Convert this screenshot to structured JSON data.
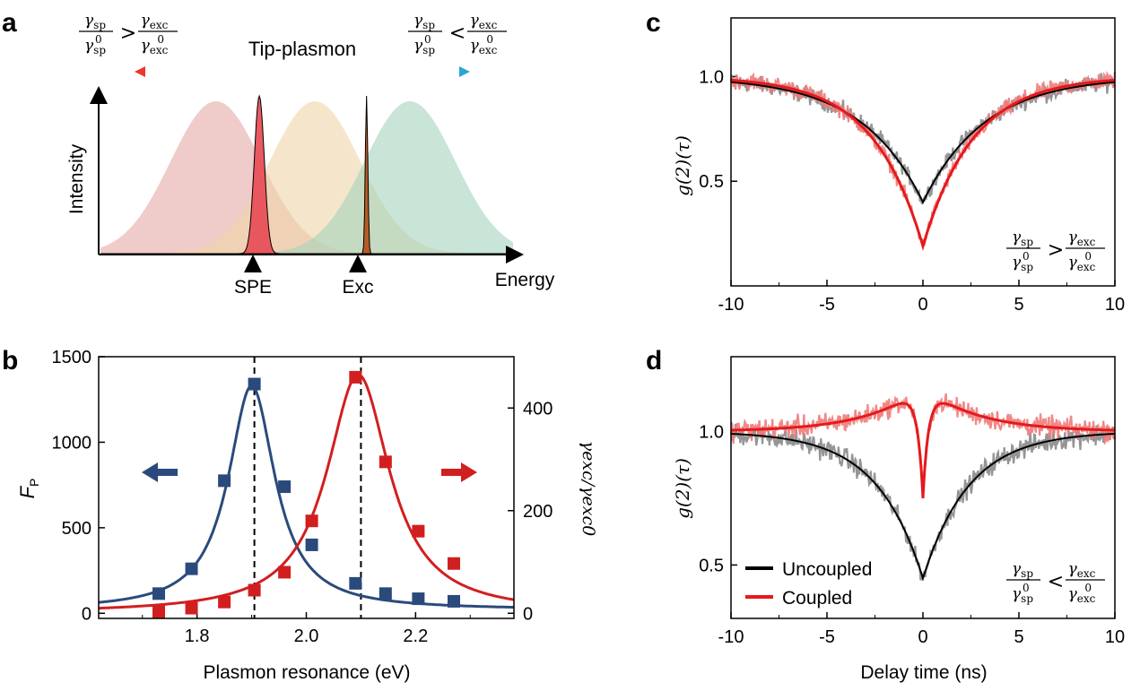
{
  "figure": {
    "panel_labels": [
      "a",
      "b",
      "c",
      "d"
    ]
  },
  "chart_data": [
    {
      "panel": "a",
      "type": "area",
      "title": "Tip-plasmon",
      "xlabel": "Energy",
      "ylabel": "Intensity",
      "ratio_left": {
        "num_sym": "γ",
        "num_sub": "sp",
        "den_sym": "γ",
        "den_sub": "sp",
        "den_sup": "0",
        "op": ">",
        "num2_sub": "exc",
        "den2_sub": "exc"
      },
      "ratio_right": {
        "op": "<"
      },
      "markers": [
        "SPE",
        "Exc"
      ],
      "series": [
        {
          "name": "plasmon-red",
          "center": 0.28,
          "width": 0.11,
          "height": 0.85,
          "color": "#e4aaa5"
        },
        {
          "name": "plasmon-yellow",
          "center": 0.52,
          "width": 0.11,
          "height": 0.85,
          "color": "#efd6a8"
        },
        {
          "name": "plasmon-green",
          "center": 0.75,
          "width": 0.11,
          "height": 0.85,
          "color": "#a3d3bd"
        },
        {
          "name": "SPE",
          "center": 0.385,
          "width": 0.012,
          "height": 0.88,
          "color": "#e8505a"
        },
        {
          "name": "Exc",
          "center": 0.645,
          "width": 0.003,
          "height": 0.88,
          "color": "#b5541d"
        }
      ]
    },
    {
      "panel": "b",
      "type": "scatter",
      "xlabel": "Plasmon resonance (eV)",
      "ylabel": "F",
      "ylabel_sub": "P",
      "y2label": "γexc/γexc0",
      "xlim": [
        1.62,
        2.38
      ],
      "ylim": [
        -30,
        1500
      ],
      "y2lim": [
        -10,
        500
      ],
      "xticks": [
        "1.8",
        "2.0",
        "2.2"
      ],
      "yticks": [
        "0",
        "500",
        "1000",
        "1500"
      ],
      "y2ticks": [
        "0",
        "200",
        "400"
      ],
      "vlines": [
        1.905,
        2.1
      ],
      "series": [
        {
          "name": "F_P",
          "axis": "left",
          "color": "#2b4a7c",
          "x": [
            1.73,
            1.79,
            1.85,
            1.905,
            1.96,
            2.01,
            2.09,
            2.145,
            2.205,
            2.27
          ],
          "y": [
            115,
            260,
            775,
            1340,
            740,
            400,
            175,
            115,
            85,
            70
          ],
          "fit": {
            "x0": 1.9,
            "gamma": 0.052,
            "amp": 1310,
            "offset": 20
          }
        },
        {
          "name": "gamma_exc_ratio",
          "axis": "right",
          "color": "#d11f1f",
          "x": [
            1.73,
            1.79,
            1.85,
            1.905,
            1.96,
            2.01,
            2.09,
            2.145,
            2.205,
            2.27
          ],
          "y": [
            3,
            10,
            22,
            45,
            80,
            180,
            460,
            295,
            160,
            97
          ],
          "fit": {
            "x0": 2.095,
            "gamma": 0.07,
            "amp": 465,
            "offset": 0
          }
        }
      ],
      "arrows": [
        "left",
        "right"
      ]
    },
    {
      "panel": "c",
      "type": "line",
      "xlabel": "",
      "ylabel": "g(2)(τ)",
      "xlim": [
        -10,
        10
      ],
      "ylim": [
        0,
        1.28
      ],
      "xticks": [
        "-10",
        "-5",
        "0",
        "5",
        "10"
      ],
      "yticks": [
        "0.5",
        "1.0"
      ],
      "ratio_op": ">",
      "series": [
        {
          "name": "Uncoupled",
          "color": "#000000",
          "raw_color": "#8a8a8a",
          "dip": 0.6,
          "tau": 3.2,
          "bunch": 0,
          "btau": 1
        },
        {
          "name": "Coupled",
          "color": "#e41a1c",
          "raw_color": "#f07a7a",
          "dip": 0.81,
          "tau": 2.6,
          "bunch": 0,
          "btau": 1
        }
      ]
    },
    {
      "panel": "d",
      "type": "line",
      "xlabel": "Delay time (ns)",
      "ylabel": "g(2)(τ)",
      "xlim": [
        -10,
        10
      ],
      "ylim": [
        0.3,
        1.28
      ],
      "xticks": [
        "-10",
        "-5",
        "0",
        "5",
        "10"
      ],
      "yticks": [
        "0.5",
        "1.0"
      ],
      "ratio_op": "<",
      "legend": [
        "Uncoupled",
        "Coupled"
      ],
      "series": [
        {
          "name": "Uncoupled",
          "color": "#000000",
          "raw_color": "#8a8a8a",
          "dip": 0.55,
          "tau": 2.4,
          "bunch": 0,
          "btau": 1
        },
        {
          "name": "Coupled",
          "color": "#e41a1c",
          "raw_color": "#f07a7a",
          "dip": 0.25,
          "tau": 0.28,
          "bunch": 0.17,
          "btau": 2.8
        }
      ]
    }
  ]
}
